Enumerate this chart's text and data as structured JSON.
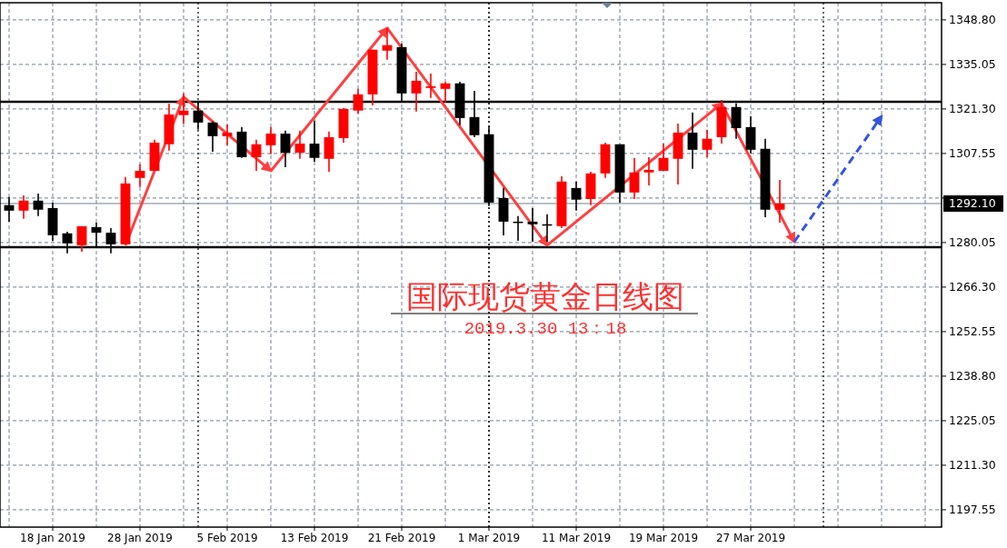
{
  "chart_data": {
    "type": "candlestick",
    "title": "国际现货黄金日线图",
    "subtitle": "2019.3.30 13：18",
    "categories": [
      null,
      null,
      null,
      "18 Jan 2019",
      null,
      null,
      null,
      null,
      null,
      "28 Jan 2019",
      null,
      null,
      null,
      null,
      null,
      "5 Feb 2019",
      null,
      null,
      null,
      null,
      null,
      "13 Feb 2019",
      null,
      null,
      null,
      null,
      null,
      "21 Feb 2019",
      null,
      null,
      null,
      null,
      null,
      "1 Mar 2019",
      null,
      null,
      null,
      null,
      null,
      "11 Mar 2019",
      null,
      null,
      null,
      null,
      null,
      "19 Mar 2019",
      null,
      null,
      null,
      null,
      null,
      "27 Mar 2019",
      null,
      null,
      null,
      null,
      null,
      null,
      null,
      null,
      null,
      null,
      null,
      null,
      null
    ],
    "ohlc": [
      [
        1291.6,
        1294.1,
        1286.5,
        1289.9
      ],
      [
        1289.9,
        1294.6,
        1287.4,
        1293.0
      ],
      [
        1293.0,
        1295.2,
        1288.2,
        1290.2
      ],
      [
        1290.7,
        1292.4,
        1280.6,
        1282.3
      ],
      [
        1282.9,
        1283.4,
        1276.7,
        1279.8
      ],
      [
        1279.2,
        1285.1,
        1277.2,
        1285.1
      ],
      [
        1284.8,
        1286.2,
        1278.4,
        1283.1
      ],
      [
        1283.1,
        1284.5,
        1276.7,
        1279.5
      ],
      [
        1279.5,
        1300.3,
        1279.5,
        1298.3
      ],
      [
        1300.0,
        1304.2,
        1297.2,
        1302.2
      ],
      [
        1302.2,
        1311.8,
        1302.2,
        1310.9
      ],
      [
        1310.4,
        1322.9,
        1308.4,
        1319.6
      ],
      [
        1319.4,
        1326.1,
        1316.8,
        1320.8
      ],
      [
        1320.8,
        1323.8,
        1314.9,
        1317.1
      ],
      [
        1317.1,
        1317.4,
        1308.1,
        1312.9
      ],
      [
        1312.9,
        1316.5,
        1310.1,
        1314.0
      ],
      [
        1314.3,
        1315.7,
        1306.2,
        1306.4
      ],
      [
        1306.4,
        1311.8,
        1302.2,
        1310.4
      ],
      [
        1310.1,
        1315.7,
        1307.3,
        1313.7
      ],
      [
        1313.7,
        1314.6,
        1303.3,
        1307.8
      ],
      [
        1307.8,
        1314.6,
        1305.9,
        1310.6
      ],
      [
        1310.6,
        1317.7,
        1305.0,
        1306.2
      ],
      [
        1305.9,
        1314.3,
        1301.9,
        1312.6
      ],
      [
        1312.3,
        1321.6,
        1310.9,
        1321.3
      ],
      [
        1320.8,
        1327.5,
        1319.9,
        1325.8
      ],
      [
        1325.8,
        1339.6,
        1322.4,
        1339.6
      ],
      [
        1339.3,
        1346.3,
        1336.5,
        1341.0
      ],
      [
        1340.4,
        1341.5,
        1323.8,
        1326.1
      ],
      [
        1326.1,
        1332.8,
        1320.5,
        1330.0
      ],
      [
        1327.8,
        1332.2,
        1324.7,
        1328.3
      ],
      [
        1327.5,
        1329.6,
        1323.3,
        1329.2
      ],
      [
        1329.2,
        1329.7,
        1316.3,
        1318.5
      ],
      [
        1318.8,
        1326.9,
        1312.6,
        1313.2
      ],
      [
        1313.5,
        1315.7,
        1291.3,
        1292.4
      ],
      [
        1293.8,
        1296.9,
        1282.3,
        1286.5
      ],
      [
        1286.5,
        1288.2,
        1280.6,
        1286.2
      ],
      [
        1286.5,
        1290.7,
        1280.3,
        1285.7
      ],
      [
        1285.7,
        1288.8,
        1280.3,
        1285.4
      ],
      [
        1285.1,
        1300.5,
        1284.5,
        1298.9
      ],
      [
        1296.9,
        1298.9,
        1289.9,
        1293.3
      ],
      [
        1293.5,
        1301.9,
        1291.6,
        1301.4
      ],
      [
        1301.4,
        1310.9,
        1300.0,
        1310.4
      ],
      [
        1310.4,
        1310.4,
        1292.4,
        1295.5
      ],
      [
        1295.5,
        1306.2,
        1293.5,
        1301.7
      ],
      [
        1301.7,
        1306.4,
        1297.7,
        1302.5
      ],
      [
        1302.2,
        1310.6,
        1302.2,
        1306.2
      ],
      [
        1305.9,
        1316.8,
        1298.0,
        1314.0
      ],
      [
        1314.0,
        1320.2,
        1302.8,
        1308.7
      ],
      [
        1308.7,
        1314.9,
        1306.4,
        1312.1
      ],
      [
        1312.6,
        1324.1,
        1310.6,
        1321.9
      ],
      [
        1321.9,
        1323.0,
        1312.1,
        1315.4
      ],
      [
        1315.7,
        1319.1,
        1307.6,
        1308.7
      ],
      [
        1309.0,
        1312.1,
        1287.9,
        1290.2
      ],
      [
        1290.2,
        1299.4,
        1286.2,
        1292.1
      ],
      null,
      null,
      null,
      null,
      null,
      null,
      null,
      null,
      null,
      null,
      null
    ],
    "colors": [
      "#000000",
      "#ff0000",
      "#000000",
      "#000000",
      "#000000",
      "#ff0000",
      "#000000",
      "#000000",
      "#ff0000",
      "#ff0000",
      "#ff0000",
      "#ff0000",
      "#ff0000",
      "#000000",
      "#000000",
      "#ff0000",
      "#000000",
      "#ff0000",
      "#ff0000",
      "#000000",
      "#ff0000",
      "#000000",
      "#ff0000",
      "#ff0000",
      "#ff0000",
      "#ff0000",
      "#ff0000",
      "#000000",
      "#ff0000",
      "#ff0000",
      "#ff0000",
      "#000000",
      "#000000",
      "#000000",
      "#000000",
      "#000000",
      "#000000",
      "#000000",
      "#ff0000",
      "#000000",
      "#ff0000",
      "#ff0000",
      "#000000",
      "#ff0000",
      "#ff0000",
      "#ff0000",
      "#ff0000",
      "#000000",
      "#ff0000",
      "#ff0000",
      "#000000",
      "#000000",
      "#000000",
      "#ff0000",
      null,
      null,
      null,
      null,
      null,
      null,
      null,
      null,
      null,
      null,
      null
    ],
    "series": [
      {
        "type": "line",
        "color": "#ff4040",
        "line_style": "solid",
        "values": [
          null,
          null,
          null,
          null,
          null,
          null,
          null,
          null,
          1279.2,
          null,
          null,
          null,
          1325.0,
          null,
          null,
          null,
          null,
          null,
          null,
          null,
          null,
          null,
          null,
          null,
          null,
          null,
          null,
          null,
          null,
          null,
          null,
          null,
          null,
          null,
          null,
          null,
          null,
          null,
          null,
          null,
          null,
          null,
          null,
          null,
          null,
          null,
          null,
          null,
          null,
          null,
          null,
          null,
          null,
          null,
          null,
          null,
          null,
          null,
          null,
          null,
          null,
          null,
          null,
          null,
          null
        ]
      },
      {
        "type": "line",
        "color": "#ff4040",
        "line_style": "solid",
        "values": [
          null,
          null,
          null,
          null,
          null,
          null,
          null,
          null,
          null,
          null,
          null,
          null,
          1325.0,
          null,
          null,
          null,
          null,
          null,
          1302.2,
          null,
          null,
          null,
          null,
          null,
          null,
          null,
          null,
          null,
          null,
          null,
          null,
          null,
          null,
          null,
          null,
          null,
          null,
          null,
          null,
          null,
          null,
          null,
          null,
          null,
          null,
          null,
          null,
          null,
          null,
          null,
          null,
          null,
          null,
          null,
          null,
          null,
          null,
          null,
          null,
          null,
          null,
          null,
          null,
          null,
          null
        ]
      },
      {
        "type": "line",
        "color": "#ff4040",
        "line_style": "solid",
        "values": [
          null,
          null,
          null,
          null,
          null,
          null,
          null,
          null,
          null,
          null,
          null,
          null,
          null,
          null,
          null,
          null,
          null,
          null,
          1302.2,
          null,
          null,
          null,
          null,
          null,
          null,
          null,
          1346.3,
          null,
          null,
          null,
          null,
          null,
          null,
          null,
          null,
          null,
          null,
          null,
          null,
          null,
          null,
          null,
          null,
          null,
          null,
          null,
          null,
          null,
          null,
          null,
          null,
          null,
          null,
          null,
          null,
          null,
          null,
          null,
          null,
          null,
          null,
          null,
          null,
          null,
          null
        ]
      },
      {
        "type": "line",
        "color": "#ff4040",
        "line_style": "solid",
        "values": [
          null,
          null,
          null,
          null,
          null,
          null,
          null,
          null,
          null,
          null,
          null,
          null,
          null,
          null,
          null,
          null,
          null,
          null,
          null,
          null,
          null,
          null,
          null,
          null,
          null,
          null,
          1346.3,
          null,
          null,
          null,
          null,
          null,
          null,
          null,
          null,
          null,
          null,
          1279.2,
          null,
          null,
          null,
          null,
          null,
          null,
          null,
          null,
          null,
          null,
          null,
          null,
          null,
          null,
          null,
          null,
          null,
          null,
          null,
          null,
          null,
          null,
          null,
          null,
          null,
          null,
          null
        ]
      },
      {
        "type": "line",
        "color": "#ff4040",
        "line_style": "solid",
        "values": [
          null,
          null,
          null,
          null,
          null,
          null,
          null,
          null,
          null,
          null,
          null,
          null,
          null,
          null,
          null,
          null,
          null,
          null,
          null,
          null,
          null,
          null,
          null,
          null,
          null,
          null,
          null,
          null,
          null,
          null,
          null,
          null,
          null,
          null,
          null,
          null,
          null,
          1279.2,
          null,
          null,
          null,
          null,
          null,
          null,
          null,
          null,
          null,
          null,
          null,
          1323.0,
          null,
          null,
          null,
          null,
          null,
          null,
          null,
          null,
          null,
          null,
          null,
          null,
          null,
          null,
          null
        ]
      },
      {
        "type": "line",
        "color": "#ff4040",
        "line_style": "solid",
        "values": [
          null,
          null,
          null,
          null,
          null,
          null,
          null,
          null,
          null,
          null,
          null,
          null,
          null,
          null,
          null,
          null,
          null,
          null,
          null,
          null,
          null,
          null,
          null,
          null,
          null,
          null,
          null,
          null,
          null,
          null,
          null,
          null,
          null,
          null,
          null,
          null,
          null,
          null,
          null,
          null,
          null,
          null,
          null,
          null,
          null,
          null,
          null,
          null,
          null,
          1323.0,
          null,
          null,
          null,
          null,
          1280.3,
          null,
          null,
          null,
          null,
          null,
          null,
          null,
          null,
          null,
          null
        ]
      },
      {
        "type": "line",
        "color": "#3355dd",
        "line_style": "dashed",
        "values": [
          null,
          null,
          null,
          null,
          null,
          null,
          null,
          null,
          null,
          null,
          null,
          null,
          null,
          null,
          null,
          null,
          null,
          null,
          null,
          null,
          null,
          null,
          null,
          null,
          null,
          null,
          null,
          null,
          null,
          null,
          null,
          null,
          null,
          null,
          null,
          null,
          null,
          null,
          null,
          null,
          null,
          null,
          null,
          null,
          null,
          null,
          null,
          null,
          null,
          null,
          null,
          null,
          null,
          null,
          1280.3,
          null,
          null,
          null,
          null,
          null,
          1319.1,
          null,
          null,
          null,
          null
        ]
      }
    ],
    "ylim": [
      1192.2,
      1354.1
    ],
    "yticks": [
      {
        "value": 1348.8,
        "label": "1348.80"
      },
      1335.05,
      {
        "value": 1321.3,
        "label": "1321.30"
      },
      1307.55,
      {
        "value": 1293.8,
        "label": null
      },
      1280.05,
      {
        "value": 1266.3,
        "label": "1266.30"
      },
      1252.55,
      {
        "value": 1238.8,
        "label": "1238.80"
      },
      1225.05,
      {
        "value": 1211.3,
        "label": "1211.30"
      },
      1197.55
    ],
    "ref_lines": [
      {
        "axis": "y",
        "value": 1292.1,
        "label": "1292.10",
        "color": "#708090",
        "line_style": "solid"
      },
      {
        "axis": "y",
        "value": 1323.5,
        "color": "#000000",
        "line_style": "solid"
      },
      {
        "axis": "y",
        "value": 1278.6,
        "color": "#000000",
        "line_style": "solid"
      },
      {
        "axis": "x",
        "value": "1 Mar 2019",
        "color": "#000000",
        "line_style": "dotted"
      }
    ],
    "grid": true
  }
}
